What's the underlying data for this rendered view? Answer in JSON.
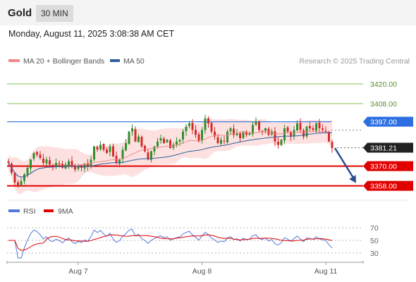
{
  "header": {
    "title": "Gold",
    "timeframe": "30 MIN"
  },
  "datetime": "Monday, August 11, 2025 3:08:38 AM CET",
  "colors": {
    "bollinger_line": "#f08a8a",
    "bollinger_fill": "#fde1e1",
    "ma50": "#2f5f9e",
    "candle_up": "#2f8f2f",
    "candle_down": "#d62a2a",
    "support": "#e00000",
    "resistance_green": "#7fbf4f",
    "pivot_blue": "#2d6fe0",
    "last_price_bg": "#222222",
    "rsi": "#5577d8",
    "rsi_ma": "#e00000",
    "arrow": "#2d4f8f"
  },
  "chart_data": [
    {
      "type": "candlestick",
      "title": "",
      "legend": [
        {
          "name": "MA 20 + Bollinger Bands",
          "color": "#f08a8a"
        },
        {
          "name": "MA 50",
          "color": "#2f5f9e"
        }
      ],
      "legend_placement": "top-left",
      "copyright": "Research © 2025 Trading Central",
      "ylim": [
        3351,
        3429
      ],
      "x_ticks": [
        {
          "label": "Aug 7",
          "index": 22
        },
        {
          "label": "Aug 8",
          "index": 61
        },
        {
          "label": "Aug 11",
          "index": 100
        }
      ],
      "y_levels": [
        {
          "value": 3420.0,
          "label": "3420.00",
          "style": "resistance"
        },
        {
          "value": 3408.0,
          "label": "3408.00",
          "style": "resistance"
        },
        {
          "value": 3397.0,
          "label": "3397.00",
          "style": "pivot"
        },
        {
          "value": 3381.21,
          "label": "3381.21",
          "style": "last"
        },
        {
          "value": 3370.0,
          "label": "3370.00",
          "style": "support"
        },
        {
          "value": 3358.0,
          "label": "3358.00",
          "style": "support"
        }
      ],
      "close_series": [
        3372,
        3366,
        3360,
        3358,
        3361,
        3365,
        3369,
        3374,
        3378,
        3377,
        3375,
        3372,
        3374,
        3371,
        3370,
        3372,
        3371,
        3369,
        3371,
        3373,
        3370,
        3368,
        3370,
        3369,
        3371,
        3370,
        3374,
        3382,
        3380,
        3383,
        3380,
        3378,
        3382,
        3376,
        3372,
        3374,
        3380,
        3384,
        3391,
        3393,
        3385,
        3388,
        3382,
        3379,
        3374,
        3379,
        3382,
        3385,
        3387,
        3384,
        3386,
        3381,
        3383,
        3385,
        3386,
        3391,
        3394,
        3396,
        3392,
        3389,
        3385,
        3392,
        3399,
        3396,
        3391,
        3388,
        3384,
        3386,
        3385,
        3391,
        3393,
        3389,
        3390,
        3387,
        3391,
        3389,
        3390,
        3395,
        3397,
        3392,
        3391,
        3393,
        3389,
        3391,
        3385,
        3383,
        3386,
        3393,
        3391,
        3388,
        3392,
        3396,
        3392,
        3388,
        3394,
        3393,
        3392,
        3396,
        3393,
        3392,
        3391,
        3385,
        3381
      ],
      "arrow": {
        "from": 3381,
        "to": 3358,
        "length_bars": 8
      }
    },
    {
      "type": "line",
      "title": "",
      "legend": [
        {
          "name": "RSI",
          "color": "#5577d8"
        },
        {
          "name": "9MA",
          "color": "#e00000"
        }
      ],
      "legend_placement": "top-left",
      "ylim": [
        22,
        78
      ],
      "y_ticks": [
        {
          "value": 70,
          "label": "70"
        },
        {
          "value": 50,
          "label": "50"
        },
        {
          "value": 30,
          "label": "30"
        }
      ],
      "last_rsi": 38
    }
  ]
}
